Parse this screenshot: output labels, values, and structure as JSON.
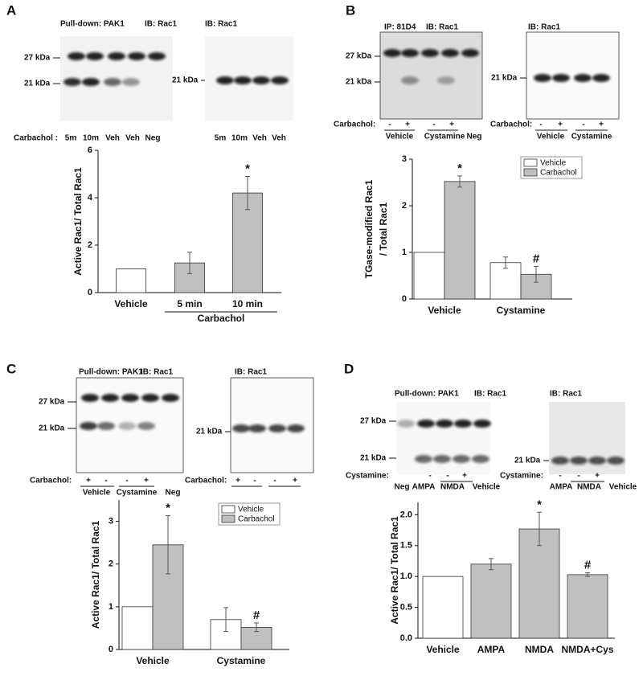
{
  "panels": [
    {
      "label": "A",
      "blots": [
        {
          "headers": [
            "Pull-down: PAK1",
            "IB: Rac1"
          ],
          "markers": [
            "27 kDa",
            "21 kDa"
          ],
          "row_label": "Carbachol :",
          "lanes": [
            "5m",
            "10m",
            "Veh",
            "Veh",
            "Neg"
          ]
        },
        {
          "headers": [
            "IB: Rac1"
          ],
          "markers": [
            "21 kDa"
          ],
          "lanes": [
            "5m",
            "10m",
            "Veh",
            "Veh"
          ]
        }
      ]
    },
    {
      "label": "B",
      "blots": [
        {
          "headers": [
            "IP: 81D4",
            "IB: Rac1"
          ],
          "markers": [
            "27 kDa",
            "21 kDa"
          ],
          "row_label": "Carbachol:",
          "signs": [
            "-",
            "+",
            "-",
            "+"
          ],
          "groups": [
            "Vehicle",
            "Cystamine",
            "Neg"
          ]
        },
        {
          "headers": [
            "IB: Rac1"
          ],
          "markers": [
            "21 kDa"
          ],
          "row_label": "Carbachol:",
          "signs": [
            "-",
            "+",
            "-",
            "+"
          ],
          "groups": [
            "Vehicle",
            "Cystamine"
          ]
        }
      ]
    },
    {
      "label": "C",
      "blots": [
        {
          "headers": [
            "Pull-down: PAK1",
            "IB: Rac1"
          ],
          "markers": [
            "27 kDa",
            "21 kDa"
          ],
          "row_label": "Carbachol:",
          "signs": [
            "+",
            "-",
            "-",
            "+"
          ],
          "groups": [
            "Vehicle",
            "Cystamine",
            "Neg"
          ]
        },
        {
          "headers": [
            "IB: Rac1"
          ],
          "markers": [
            "21 kDa"
          ],
          "row_label": "Carbachol:",
          "signs": [
            "+",
            "-",
            "-",
            "+"
          ]
        }
      ]
    },
    {
      "label": "D",
      "blots": [
        {
          "headers": [
            "Pull-down: PAK1",
            "IB: Rac1"
          ],
          "markers": [
            "27 kDa",
            "21 kDa"
          ],
          "row_label": "Cystamine:",
          "signs": [
            "-",
            "-",
            "+"
          ],
          "lanes": [
            "Neg",
            "AMPA",
            "NMDA",
            "Vehicle"
          ]
        },
        {
          "headers": [
            "IB: Rac1"
          ],
          "markers": [
            "21 kDa"
          ],
          "row_label": "Cystamine:",
          "signs": [
            "-",
            "-",
            "+"
          ],
          "lanes": [
            "AMPA",
            "NMDA",
            "Vehicle"
          ]
        }
      ]
    }
  ],
  "chart_data": [
    {
      "type": "bar",
      "categories": [
        "Vehicle",
        "5 min",
        "10 min"
      ],
      "values": [
        1,
        1.25,
        4.2
      ],
      "errors": [
        null,
        0.45,
        0.7
      ],
      "colors": [
        "#ffffff",
        "#c0c0c0",
        "#c0c0c0"
      ],
      "annotations": [
        null,
        null,
        "*"
      ],
      "xlabel": "Carbachol",
      "ylabel": "Active Rac1/ Total Rac1",
      "ylim": [
        0,
        6
      ],
      "yticks": [
        0,
        2,
        4,
        6
      ]
    },
    {
      "type": "grouped_bar",
      "categories": [
        "Vehicle",
        "Cystamine"
      ],
      "series": [
        {
          "name": "Vehicle",
          "color": "#ffffff",
          "values": [
            1,
            0.78
          ],
          "errors": [
            null,
            0.12
          ]
        },
        {
          "name": "Carbachol",
          "color": "#c0c0c0",
          "values": [
            2.52,
            0.53
          ],
          "errors": [
            0.12,
            0.17
          ],
          "annotations": [
            "*",
            "#"
          ]
        }
      ],
      "ylabel": [
        "TGase-modified Rac1",
        "/ Total Rac1"
      ],
      "ylim": [
        0,
        3
      ],
      "yticks": [
        0,
        1,
        2,
        3
      ],
      "legend": "upper right"
    },
    {
      "type": "grouped_bar",
      "categories": [
        "Vehicle",
        "Cystamine"
      ],
      "series": [
        {
          "name": "Vehicle",
          "color": "#ffffff",
          "values": [
            1,
            0.7
          ],
          "errors": [
            null,
            0.28
          ]
        },
        {
          "name": "Carbachol",
          "color": "#c0c0c0",
          "values": [
            2.45,
            0.52
          ],
          "errors": [
            0.68,
            0.1
          ],
          "annotations": [
            "*",
            "#"
          ]
        }
      ],
      "ylabel": "Active Rac1/ Total Rac1",
      "ylim": [
        0,
        3.5
      ],
      "yticks": [
        0,
        1,
        2,
        3
      ],
      "legend": "upper right"
    },
    {
      "type": "bar",
      "categories": [
        "Vehicle",
        "AMPA",
        "NMDA",
        "NMDA+Cys"
      ],
      "values": [
        1,
        1.2,
        1.77,
        1.03
      ],
      "errors": [
        null,
        0.09,
        0.27,
        0.03
      ],
      "colors": [
        "#ffffff",
        "#c0c0c0",
        "#c0c0c0",
        "#c0c0c0"
      ],
      "annotations": [
        null,
        null,
        "*",
        "#"
      ],
      "ylabel": "Active Rac1/ Total Rac1",
      "ylim": [
        0,
        2.2
      ],
      "yticks": [
        {
          "value": 0,
          "label": "0.0"
        },
        0.5,
        {
          "value": 1,
          "label": "1.0"
        },
        1.5,
        {
          "value": 2,
          "label": "2.0"
        }
      ]
    }
  ]
}
